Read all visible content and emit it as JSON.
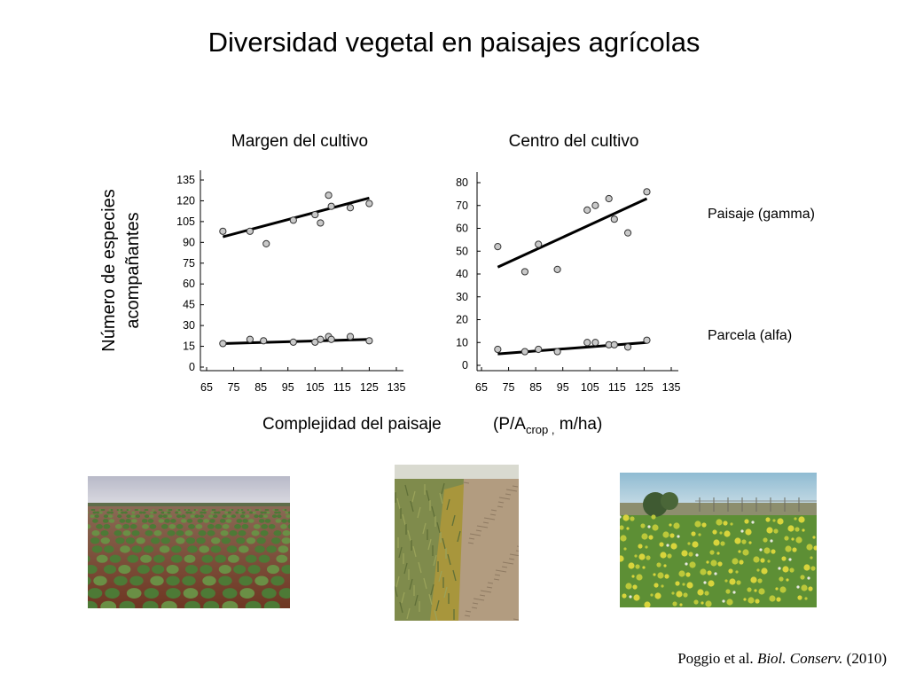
{
  "slide": {
    "title": "Diversidad vegetal en paisajes agrícolas",
    "ylabel_line1": "Número de especies",
    "ylabel_line2": "acompañantes",
    "xlabel": "Complejidad del paisaje",
    "xunit_prefix": "(P/A",
    "xunit_sub": "crop ,",
    "xunit_suffix": " m/ha)",
    "series_label_gamma": "Paisaje (gamma)",
    "series_label_alpha": "Parcela (alfa)",
    "citation_authors": "Poggio et al. ",
    "citation_journal": "Biol. Conserv.",
    "citation_year": " (2010)"
  },
  "photos": [
    {
      "name": "crop-field-photo",
      "colors": {
        "sky": "#c9cbd6",
        "ground": "#7a3f28",
        "plants": "#4f7a3a"
      }
    },
    {
      "name": "field-margin-photo",
      "colors": {
        "grass": "#7d8a4a",
        "stubble": "#b8a58a",
        "sky": "#d8d8d0"
      }
    },
    {
      "name": "flowering-margin-photo",
      "colors": {
        "sky": "#a8c8d8",
        "green": "#6d9a3c",
        "yellow": "#e0d840"
      }
    }
  ],
  "chart_data": [
    {
      "type": "scatter",
      "title": "Margen del cultivo",
      "xlabel": "Complejidad del paisaje (P/Acrop , m/ha)",
      "ylabel": "Número de especies acompañantes",
      "xlim": [
        65,
        135
      ],
      "ylim": [
        0,
        135
      ],
      "xticks": [
        65,
        75,
        85,
        95,
        105,
        115,
        125,
        135
      ],
      "yticks": [
        0,
        15,
        30,
        45,
        60,
        75,
        90,
        105,
        120,
        135
      ],
      "grid": false,
      "series": [
        {
          "name": "Paisaje (gamma)",
          "points": [
            [
              71,
              98
            ],
            [
              81,
              98
            ],
            [
              87,
              89
            ],
            [
              97,
              106
            ],
            [
              105,
              110
            ],
            [
              107,
              104
            ],
            [
              110,
              124
            ],
            [
              111,
              116
            ],
            [
              118,
              115
            ],
            [
              125,
              118
            ]
          ],
          "trend": [
            [
              71,
              94
            ],
            [
              125,
              122
            ]
          ]
        },
        {
          "name": "Parcela (alfa)",
          "points": [
            [
              71,
              17
            ],
            [
              81,
              20
            ],
            [
              86,
              19
            ],
            [
              97,
              18
            ],
            [
              105,
              18
            ],
            [
              107,
              20
            ],
            [
              110,
              22
            ],
            [
              111,
              20
            ],
            [
              118,
              22
            ],
            [
              125,
              19
            ]
          ],
          "trend": [
            [
              71,
              17
            ],
            [
              125,
              20
            ]
          ]
        }
      ]
    },
    {
      "type": "scatter",
      "title": "Centro del cultivo",
      "xlabel": "Complejidad del paisaje (P/Acrop , m/ha)",
      "ylabel": "Número de especies acompañantes",
      "xlim": [
        65,
        135
      ],
      "ylim": [
        0,
        80
      ],
      "xticks": [
        65,
        75,
        85,
        95,
        105,
        115,
        125,
        135
      ],
      "yticks": [
        0,
        10,
        20,
        30,
        40,
        50,
        60,
        70,
        80
      ],
      "grid": false,
      "series": [
        {
          "name": "Paisaje (gamma)",
          "points": [
            [
              71,
              52
            ],
            [
              81,
              41
            ],
            [
              86,
              53
            ],
            [
              93,
              42
            ],
            [
              104,
              68
            ],
            [
              107,
              70
            ],
            [
              112,
              73
            ],
            [
              114,
              64
            ],
            [
              119,
              58
            ],
            [
              126,
              76
            ]
          ],
          "trend": [
            [
              71,
              43
            ],
            [
              126,
              73
            ]
          ]
        },
        {
          "name": "Parcela (alfa)",
          "points": [
            [
              71,
              7
            ],
            [
              81,
              6
            ],
            [
              86,
              7
            ],
            [
              93,
              6
            ],
            [
              104,
              10
            ],
            [
              107,
              10
            ],
            [
              112,
              9
            ],
            [
              114,
              9
            ],
            [
              119,
              8
            ],
            [
              126,
              11
            ]
          ],
          "trend": [
            [
              71,
              5
            ],
            [
              126,
              10
            ]
          ]
        }
      ]
    }
  ]
}
